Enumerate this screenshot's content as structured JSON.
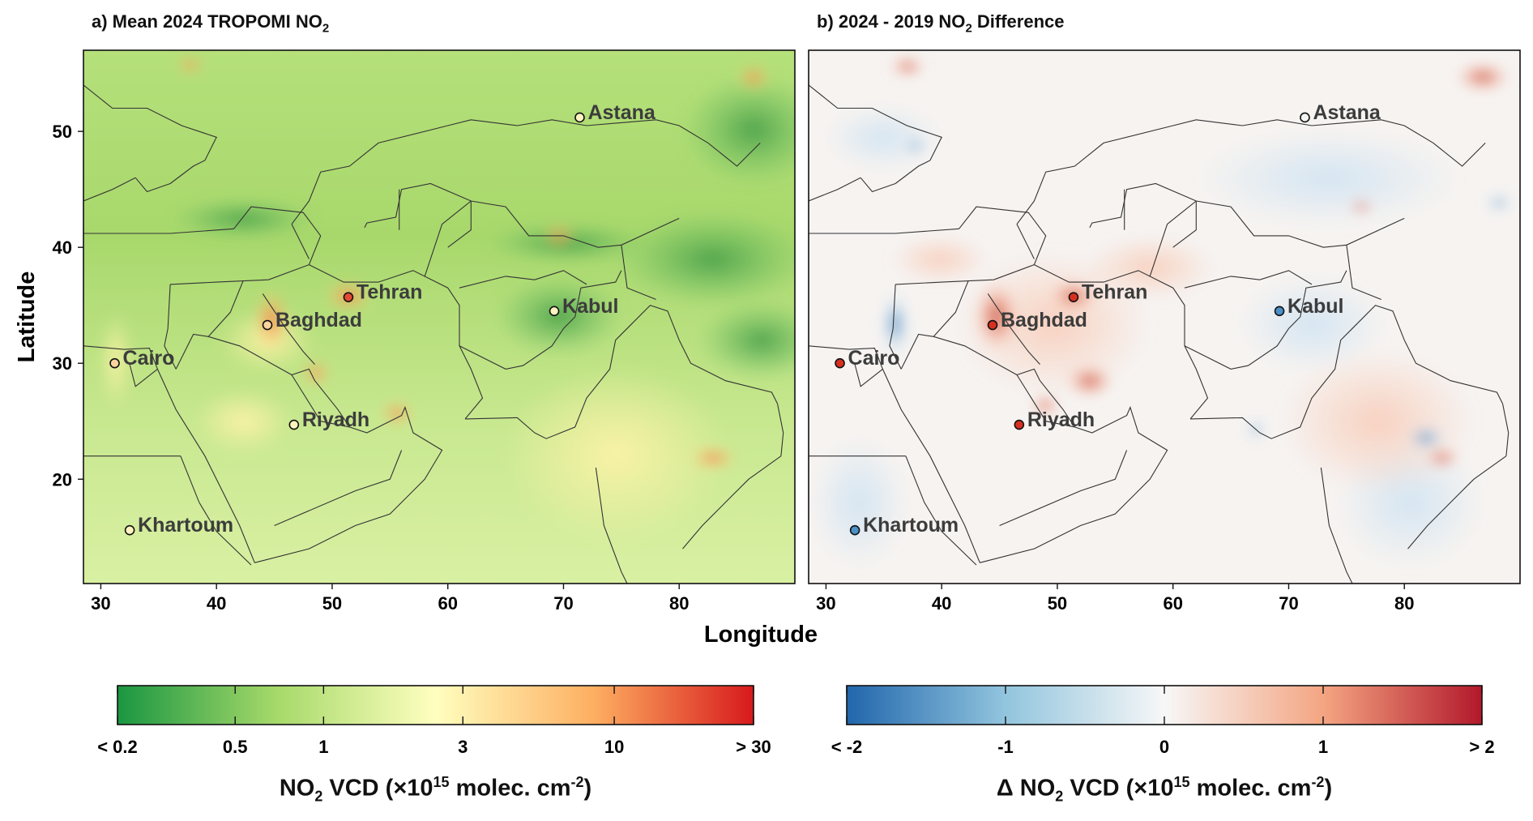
{
  "panels": [
    {
      "id": "a",
      "title_pre": "a) Mean 2024 TROPOMI NO",
      "title_sub": "2",
      "title_post": ""
    },
    {
      "id": "b",
      "title_pre": "b) 2024 - 2019 NO",
      "title_sub": "2",
      "title_post": " Difference"
    }
  ],
  "axes": {
    "xlabel": "Longitude",
    "ylabel": "Latitude",
    "x_range": [
      28.5,
      90
    ],
    "y_range": [
      11,
      57
    ],
    "x_ticks": [
      30,
      40,
      50,
      60,
      70,
      80
    ],
    "y_ticks": [
      20,
      30,
      40,
      50
    ]
  },
  "cities": [
    {
      "name": "Astana",
      "lon": 71.4,
      "lat": 51.2,
      "diff": "neutral"
    },
    {
      "name": "Tehran",
      "lon": 51.4,
      "lat": 35.7,
      "diff": "increase"
    },
    {
      "name": "Kabul",
      "lon": 69.2,
      "lat": 34.5,
      "diff": "decrease"
    },
    {
      "name": "Baghdad",
      "lon": 44.4,
      "lat": 33.3,
      "diff": "increase"
    },
    {
      "name": "Cairo",
      "lon": 31.2,
      "lat": 30.0,
      "diff": "increase"
    },
    {
      "name": "Riyadh",
      "lon": 46.7,
      "lat": 24.7,
      "diff": "increase"
    },
    {
      "name": "Khartoum",
      "lon": 32.5,
      "lat": 15.6,
      "diff": "decrease"
    }
  ],
  "colorbars": [
    {
      "id": "no2",
      "ticks": [
        "< 0.2",
        "0.5",
        "1",
        "3",
        "10",
        "> 30"
      ],
      "tick_fracs": [
        0,
        0.185,
        0.324,
        0.543,
        0.781,
        1
      ],
      "title_pre": "NO",
      "title_sub": "2",
      "title_mid": " VCD (×10",
      "title_sup": "15",
      "title_post": " molec. cm",
      "title_sup2": "-2",
      "title_end": ")",
      "colors": [
        "#1a9641",
        "#a6d96a",
        "#ffffbf",
        "#fdae61",
        "#d7191c"
      ]
    },
    {
      "id": "diff",
      "ticks": [
        "< -2",
        "-1",
        "0",
        "1",
        "> 2"
      ],
      "tick_fracs": [
        0,
        0.25,
        0.5,
        0.75,
        1
      ],
      "title_pre": "Δ NO",
      "title_sub": "2",
      "title_mid": " VCD (×10",
      "title_sup": "15",
      "title_post": " molec. cm",
      "title_sup2": "-2",
      "title_end": ")",
      "colors": [
        "#2166ac",
        "#92c5de",
        "#f7f7f7",
        "#f4a582",
        "#b2182b"
      ]
    }
  ]
}
